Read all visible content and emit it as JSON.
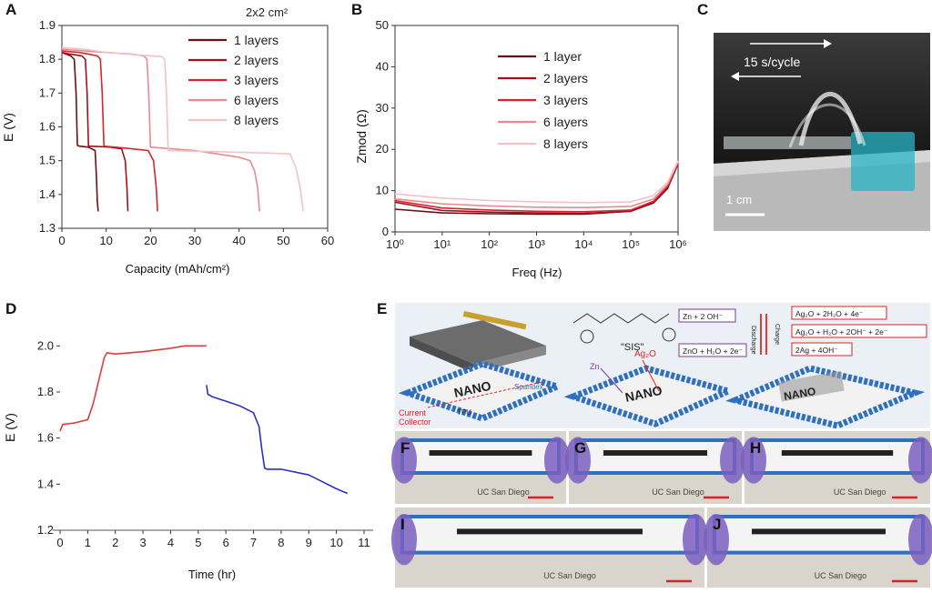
{
  "panels": {
    "A": {
      "label": "A",
      "note": "2x2 cm²"
    },
    "B": {
      "label": "B"
    },
    "C": {
      "label": "C",
      "cycle": "15 s/cycle",
      "scale": "1 cm"
    },
    "D": {
      "label": "D"
    },
    "E": {
      "label": "E",
      "polymer": "\"SIS\"",
      "labels": {
        "tpu": "TPU",
        "spandex": "Spandex",
        "current": "Current",
        "collector": "Collector",
        "zn": "Zn",
        "ag2o": "Ag₂O",
        "nano": "NANO"
      },
      "discharge": "Discharge",
      "charge": "Charge",
      "reactions": [
        "Zn + 2 OH⁻",
        "ZnO + H₂O + 2e⁻",
        "Ag₂O + 2H₂O + 4e⁻",
        "Ag₂O + H₂O + 2OH⁻ + 2e⁻",
        "2Ag + 4OH⁻"
      ]
    },
    "photos": [
      {
        "label": "F",
        "caption": "UC San Diego"
      },
      {
        "label": "G",
        "caption": "UC San Diego"
      },
      {
        "label": "H",
        "caption": "UC San Diego"
      },
      {
        "label": "I",
        "caption": "UC San Diego"
      },
      {
        "label": "J",
        "caption": "UC San Diego"
      }
    ]
  },
  "colors": {
    "l1": "#6b0f17",
    "l2": "#a3101c",
    "l3": "#d8232e",
    "l6": "#ea8a8f",
    "l8": "#f4c1c4",
    "charge": "#e33b3b",
    "discharge": "#2b2fc9",
    "blue": "#2e6fc0"
  },
  "chart_data": [
    {
      "id": "A",
      "type": "line",
      "title": "",
      "xlabel": "Capacity (mAh/cm²)",
      "ylabel": "E (V)",
      "xlim": [
        0,
        60
      ],
      "ylim": [
        1.3,
        1.9
      ],
      "xticks": [
        "0",
        "10",
        "20",
        "30",
        "40",
        "50",
        "60"
      ],
      "yticks": [
        "1.3",
        "1.4",
        "1.5",
        "1.6",
        "1.7",
        "1.8",
        "1.9"
      ],
      "legend": "top-center",
      "series": [
        {
          "name": "1 layers",
          "x": [
            0,
            1,
            2,
            2.8,
            3.2,
            3.5,
            4,
            6,
            7.5,
            7.8,
            8,
            8.2
          ],
          "y": [
            1.82,
            1.815,
            1.81,
            1.8,
            1.7,
            1.545,
            1.543,
            1.54,
            1.53,
            1.45,
            1.38,
            1.35
          ]
        },
        {
          "name": "2 layers",
          "x": [
            0,
            2,
            4.5,
            5.3,
            5.7,
            6,
            8,
            11,
            13.5,
            14.3,
            14.7,
            14.9
          ],
          "y": [
            1.82,
            1.815,
            1.81,
            1.8,
            1.7,
            1.543,
            1.542,
            1.54,
            1.535,
            1.5,
            1.42,
            1.35
          ]
        },
        {
          "name": "3 layers",
          "x": [
            0,
            4,
            8,
            8.7,
            9.1,
            9.5,
            12,
            16,
            19.5,
            20.7,
            21.3,
            21.6
          ],
          "y": [
            1.825,
            1.82,
            1.81,
            1.8,
            1.7,
            1.543,
            1.54,
            1.535,
            1.53,
            1.5,
            1.42,
            1.35
          ]
        },
        {
          "name": "6 layers",
          "x": [
            0,
            5,
            10,
            16,
            18.5,
            19.2,
            19.6,
            20,
            25,
            30,
            35,
            40,
            42.5,
            43.5,
            44.2,
            44.6
          ],
          "y": [
            1.83,
            1.825,
            1.82,
            1.815,
            1.81,
            1.8,
            1.7,
            1.54,
            1.535,
            1.53,
            1.52,
            1.51,
            1.5,
            1.47,
            1.42,
            1.35
          ]
        },
        {
          "name": "8 layers",
          "x": [
            0,
            5,
            10,
            15,
            20,
            22.5,
            23.2,
            23.6,
            24,
            30,
            40,
            48,
            51.5,
            52.8,
            53.8,
            54.5
          ],
          "y": [
            1.835,
            1.83,
            1.82,
            1.815,
            1.81,
            1.808,
            1.8,
            1.7,
            1.53,
            1.528,
            1.525,
            1.522,
            1.52,
            1.48,
            1.42,
            1.35
          ]
        }
      ]
    },
    {
      "id": "B",
      "type": "line",
      "title": "",
      "xlabel": "Freq (Hz)",
      "ylabel": "Zmod (Ω)",
      "xscale": "log",
      "xlim": [
        1,
        1000000
      ],
      "ylim": [
        0,
        50
      ],
      "xticks": [
        "10⁰",
        "10¹",
        "10²",
        "10³",
        "10⁴",
        "10⁵",
        "10⁶"
      ],
      "yticks": [
        "0",
        "10",
        "20",
        "30",
        "40",
        "50"
      ],
      "legend": "top-center",
      "series": [
        {
          "name": "1 layer",
          "x": [
            1,
            10,
            100,
            1000,
            10000,
            100000,
            300000,
            600000,
            1000000
          ],
          "y": [
            5.5,
            4.6,
            4.4,
            4.3,
            4.3,
            5.0,
            7.0,
            10.5,
            16.5
          ]
        },
        {
          "name": "2 layers",
          "x": [
            1,
            10,
            100,
            1000,
            10000,
            100000,
            300000,
            600000,
            1000000
          ],
          "y": [
            7.2,
            5.2,
            4.8,
            4.6,
            4.5,
            5.0,
            7.2,
            10.8,
            16.5
          ]
        },
        {
          "name": "3 layers",
          "x": [
            1,
            10,
            100,
            1000,
            10000,
            100000,
            300000,
            600000,
            1000000
          ],
          "y": [
            7.6,
            5.8,
            5.3,
            5.0,
            4.9,
            5.3,
            7.4,
            11.0,
            16.8
          ]
        },
        {
          "name": "6 layers",
          "x": [
            1,
            10,
            100,
            1000,
            10000,
            100000,
            300000,
            600000,
            1000000
          ],
          "y": [
            8.0,
            6.8,
            6.3,
            6.0,
            5.9,
            6.2,
            8.0,
            11.5,
            17.0
          ]
        },
        {
          "name": "8 layers",
          "x": [
            1,
            10,
            100,
            1000,
            10000,
            100000,
            300000,
            600000,
            1000000
          ],
          "y": [
            9.2,
            8.2,
            7.6,
            7.3,
            7.1,
            7.3,
            8.8,
            12.0,
            17.2
          ]
        }
      ]
    },
    {
      "id": "D",
      "type": "line",
      "title": "",
      "xlabel": "Time (hr)",
      "ylabel": "E  (V)",
      "xlim": [
        0,
        11
      ],
      "ylim": [
        1.2,
        2.1
      ],
      "xticks": [
        "0",
        "1",
        "2",
        "3",
        "4",
        "5",
        "6",
        "7",
        "8",
        "9",
        "10",
        "11"
      ],
      "yticks": [
        "1.2",
        "1.4",
        "1.6",
        "1.8",
        "2.0"
      ],
      "legend": "none",
      "series": [
        {
          "name": "charge",
          "x": [
            0,
            0.1,
            0.5,
            1.0,
            1.2,
            1.4,
            1.6,
            1.7,
            2.0,
            3.0,
            4.0,
            4.5,
            5.0,
            5.3
          ],
          "y": [
            1.63,
            1.66,
            1.665,
            1.68,
            1.75,
            1.85,
            1.95,
            1.97,
            1.965,
            1.975,
            1.99,
            2.0,
            2.0,
            2.0
          ]
        },
        {
          "name": "discharge",
          "x": [
            5.3,
            5.35,
            5.5,
            6.0,
            6.5,
            7.0,
            7.2,
            7.3,
            7.4,
            7.5,
            8.0,
            9.0,
            9.5,
            10.0,
            10.4
          ],
          "y": [
            1.83,
            1.79,
            1.78,
            1.76,
            1.74,
            1.71,
            1.65,
            1.55,
            1.47,
            1.465,
            1.465,
            1.44,
            1.41,
            1.38,
            1.36
          ]
        }
      ]
    }
  ]
}
